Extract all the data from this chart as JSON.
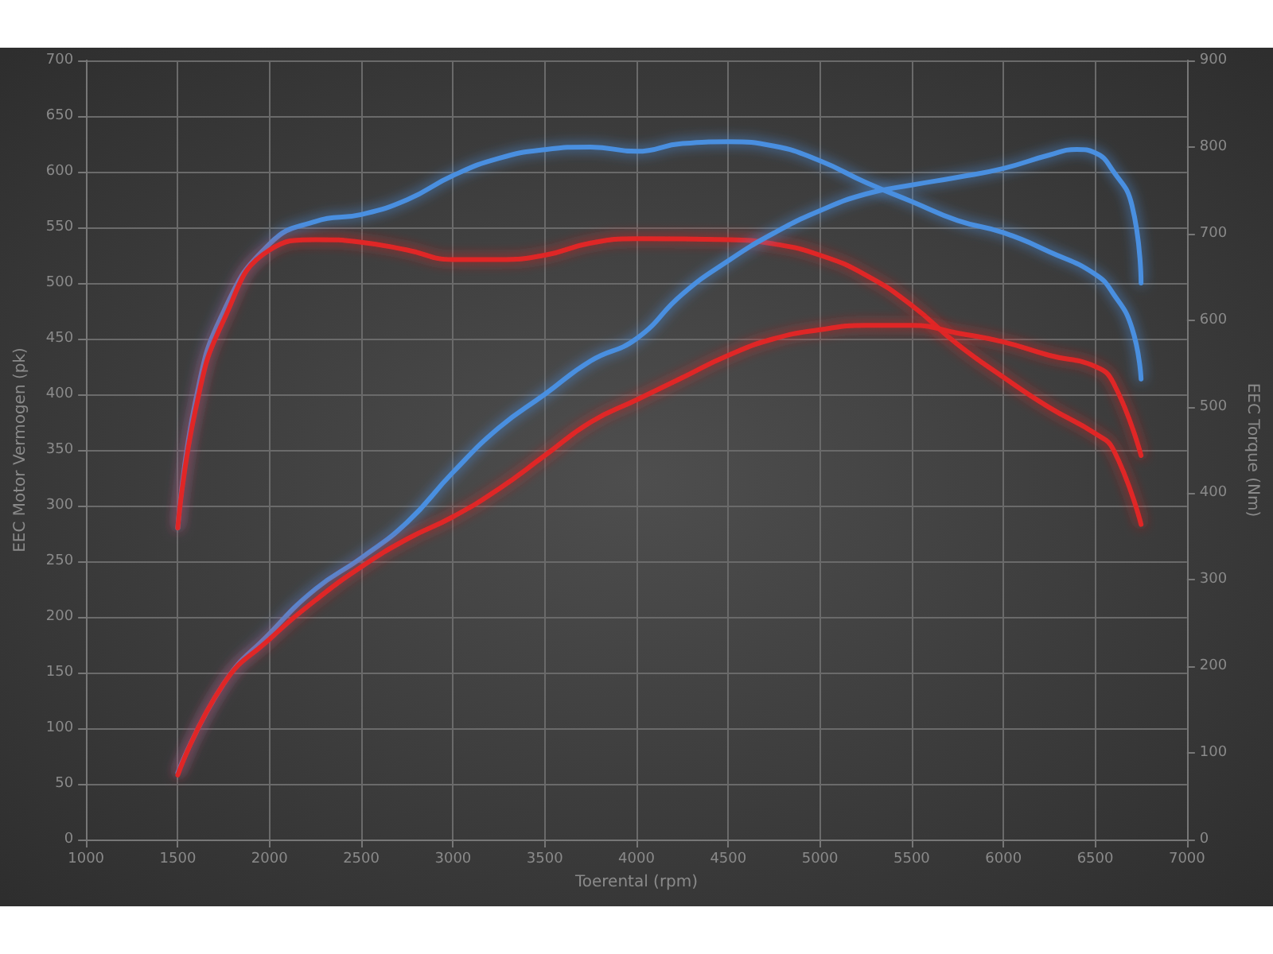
{
  "chart_data": {
    "type": "line",
    "xlabel": "Toerental (rpm)",
    "ylabel": "EEC Motor Vermogen (pk)",
    "y2label": "EEC Torque (Nm)",
    "xlim": [
      1000,
      7000
    ],
    "xticks": [
      1000,
      1500,
      2000,
      2500,
      3000,
      3500,
      4000,
      4500,
      5000,
      5500,
      6000,
      6500,
      7000
    ],
    "ylim": [
      0,
      700
    ],
    "yticks": [
      0,
      50,
      100,
      150,
      200,
      250,
      300,
      350,
      400,
      450,
      500,
      550,
      600,
      650,
      700
    ],
    "y2lim": [
      0,
      900
    ],
    "y2ticks": [
      0,
      100,
      200,
      300,
      400,
      500,
      600,
      700,
      800,
      900
    ],
    "grid": true,
    "marker": "none",
    "line_style": "solid",
    "series": [
      {
        "color": "#4a8fe0",
        "axis": "y2",
        "x": [
          1500,
          1600,
          1750,
          2000,
          2250,
          2500,
          2750,
          3000,
          3250,
          3500,
          3750,
          4000,
          4250,
          4500,
          4750,
          5000,
          5250,
          5500,
          5750,
          6000,
          6250,
          6500,
          6600,
          6700,
          6750
        ],
        "values": [
          360,
          510,
          610,
          688,
          714,
          722,
          739,
          767,
          787,
          797,
          800,
          795,
          804,
          806,
          801,
          784,
          759,
          737,
          715,
          701,
          679,
          653,
          630,
          591,
          532
        ]
      },
      {
        "color": "#e02828",
        "axis": "y2",
        "x": [
          1500,
          1600,
          1750,
          2000,
          2250,
          2500,
          2750,
          3000,
          3250,
          3500,
          3750,
          4000,
          4500,
          4750,
          5000,
          5250,
          5500,
          5750,
          6000,
          6250,
          6500,
          6600,
          6750
        ],
        "values": [
          360,
          500,
          600,
          681,
          693,
          690,
          681,
          670,
          670,
          675,
          689,
          694,
          693,
          688,
          675,
          652,
          617,
          572,
          534,
          499,
          469,
          450,
          364
        ]
      },
      {
        "color": "#4a8fe0",
        "x": [
          1500,
          1750,
          2000,
          2250,
          2500,
          2750,
          3000,
          3250,
          3500,
          3750,
          4000,
          4250,
          4500,
          4750,
          5000,
          5250,
          5500,
          5750,
          6000,
          6250,
          6400,
          6500,
          6600,
          6700,
          6750
        ],
        "values": [
          60,
          140,
          185,
          225,
          253,
          285,
          330,
          370,
          400,
          430,
          450,
          490,
          520,
          545,
          565,
          580,
          588,
          595,
          603,
          615,
          620,
          617,
          600,
          570,
          500
        ]
      },
      {
        "color": "#e02828",
        "x": [
          1500,
          1750,
          2000,
          2250,
          2500,
          2750,
          3000,
          3250,
          3500,
          3750,
          4000,
          4250,
          4500,
          4750,
          5000,
          5250,
          5500,
          5750,
          6000,
          6250,
          6500,
          6600,
          6750
        ],
        "values": [
          58,
          140,
          180,
          215,
          245,
          270,
          290,
          315,
          345,
          375,
          395,
          415,
          435,
          450,
          458,
          462,
          462,
          455,
          447,
          435,
          425,
          410,
          345
        ]
      }
    ]
  }
}
